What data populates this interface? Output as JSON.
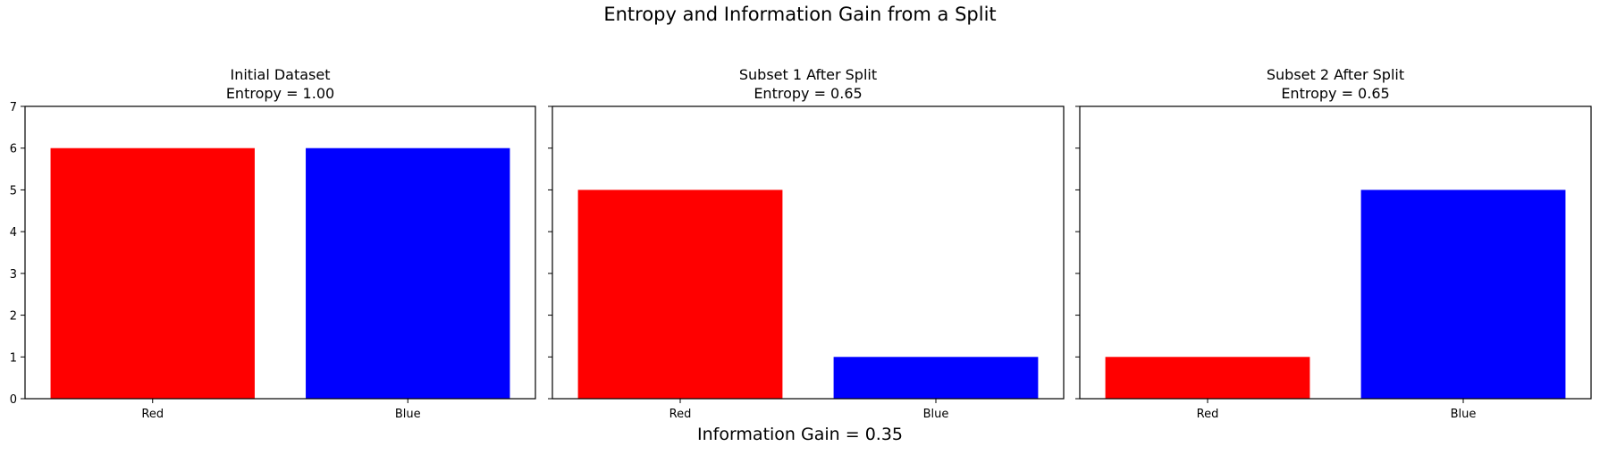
{
  "figure": {
    "suptitle": "Entropy and Information Gain from a Split",
    "footer": "Information Gain = 0.35"
  },
  "chart_data": [
    {
      "type": "bar",
      "title_line1": "Initial Dataset",
      "title_line2": "Entropy = 1.00",
      "categories": [
        "Red",
        "Blue"
      ],
      "values": [
        6,
        6
      ],
      "colors": [
        "#ff0000",
        "#0000ff"
      ],
      "ylim": [
        0,
        7
      ],
      "yticks": [
        0,
        1,
        2,
        3,
        4,
        5,
        6,
        7
      ],
      "show_ytick_labels": true,
      "grid": false
    },
    {
      "type": "bar",
      "title_line1": "Subset 1 After Split",
      "title_line2": "Entropy = 0.65",
      "categories": [
        "Red",
        "Blue"
      ],
      "values": [
        5,
        1
      ],
      "colors": [
        "#ff0000",
        "#0000ff"
      ],
      "ylim": [
        0,
        7
      ],
      "yticks": [
        0,
        1,
        2,
        3,
        4,
        5,
        6,
        7
      ],
      "show_ytick_labels": false,
      "grid": false
    },
    {
      "type": "bar",
      "title_line1": "Subset 2 After Split",
      "title_line2": "Entropy = 0.65",
      "categories": [
        "Red",
        "Blue"
      ],
      "values": [
        1,
        5
      ],
      "colors": [
        "#ff0000",
        "#0000ff"
      ],
      "ylim": [
        0,
        7
      ],
      "yticks": [
        0,
        1,
        2,
        3,
        4,
        5,
        6,
        7
      ],
      "show_ytick_labels": false,
      "grid": false
    }
  ]
}
